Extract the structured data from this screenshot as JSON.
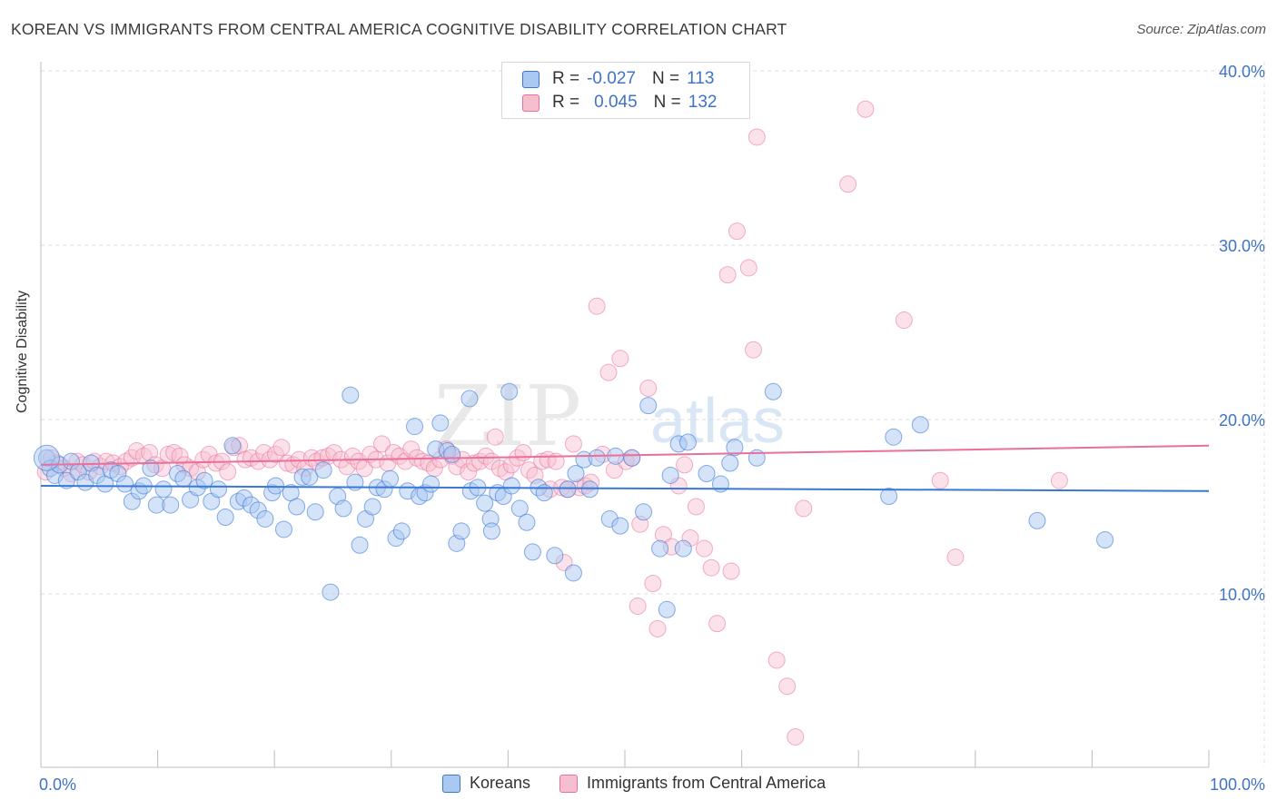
{
  "title": "KOREAN VS IMMIGRANTS FROM CENTRAL AMERICA COGNITIVE DISABILITY CORRELATION CHART",
  "source": "Source: ZipAtlas.com",
  "watermark": "ZIPatlas",
  "colors": {
    "blue": "#3a78d6",
    "blue_fill": "#a9c8f2",
    "pink": "#e8709a",
    "pink_fill": "#f6bfd0",
    "axis_text": "#3e73c8",
    "grid": "#dcdcdc"
  },
  "legend": {
    "rows": [
      {
        "r_label": "R =",
        "r_value": "-0.027",
        "n_label": "N =",
        "n_value": "113"
      },
      {
        "r_label": "R =",
        "r_value": "0.045",
        "n_label": "N =",
        "n_value": "132"
      }
    ]
  },
  "bottom_legend": {
    "series1": "Koreans",
    "series2": "Immigrants from Central America"
  },
  "chart_data": {
    "type": "scatter",
    "ylabel": "Cognitive Disability",
    "xlabel": "",
    "x_tick_labels": [
      "0.0%",
      "100.0%"
    ],
    "y_tick_labels": [
      "10.0%",
      "20.0%",
      "30.0%",
      "40.0%"
    ],
    "y_ticks": [
      10,
      20,
      30,
      40
    ],
    "xlim": [
      0,
      100
    ],
    "ylim": [
      0,
      41
    ],
    "grid": true,
    "series": [
      {
        "name": "Koreans",
        "trend": {
          "y_at_0": 16.2,
          "y_at_100": 15.9
        },
        "points": [
          [
            0.5,
            17.8
          ],
          [
            0.8,
            17.2
          ],
          [
            1.2,
            16.8
          ],
          [
            1.6,
            17.4
          ],
          [
            2.2,
            16.5
          ],
          [
            2.6,
            17.6
          ],
          [
            3.2,
            17.0
          ],
          [
            3.8,
            16.4
          ],
          [
            4.3,
            17.5
          ],
          [
            4.8,
            16.8
          ],
          [
            5.5,
            16.3
          ],
          [
            6.0,
            17.1
          ],
          [
            6.6,
            16.9
          ],
          [
            7.2,
            16.3
          ],
          [
            7.8,
            15.3
          ],
          [
            8.4,
            15.9
          ],
          [
            8.8,
            16.2
          ],
          [
            9.4,
            17.2
          ],
          [
            9.9,
            15.1
          ],
          [
            10.5,
            16.0
          ],
          [
            11.1,
            15.1
          ],
          [
            11.7,
            16.9
          ],
          [
            12.2,
            16.6
          ],
          [
            12.8,
            15.4
          ],
          [
            13.4,
            16.1
          ],
          [
            14.0,
            16.5
          ],
          [
            14.6,
            15.3
          ],
          [
            15.2,
            16.0
          ],
          [
            15.8,
            14.4
          ],
          [
            16.4,
            18.5
          ],
          [
            16.9,
            15.3
          ],
          [
            17.4,
            15.5
          ],
          [
            18.0,
            15.1
          ],
          [
            18.6,
            14.8
          ],
          [
            19.2,
            14.3
          ],
          [
            19.8,
            15.8
          ],
          [
            20.1,
            16.2
          ],
          [
            20.8,
            13.7
          ],
          [
            21.4,
            15.8
          ],
          [
            21.9,
            15.0
          ],
          [
            22.4,
            16.7
          ],
          [
            23.0,
            16.7
          ],
          [
            23.5,
            14.7
          ],
          [
            24.2,
            17.1
          ],
          [
            24.8,
            10.1
          ],
          [
            25.4,
            15.6
          ],
          [
            25.9,
            14.9
          ],
          [
            26.5,
            21.4
          ],
          [
            26.9,
            16.4
          ],
          [
            27.3,
            12.8
          ],
          [
            27.8,
            14.3
          ],
          [
            28.4,
            15.0
          ],
          [
            28.8,
            16.1
          ],
          [
            29.4,
            16.0
          ],
          [
            29.9,
            16.6
          ],
          [
            30.4,
            13.2
          ],
          [
            30.9,
            13.6
          ],
          [
            31.4,
            15.9
          ],
          [
            32.0,
            19.6
          ],
          [
            32.4,
            15.6
          ],
          [
            32.9,
            15.8
          ],
          [
            33.4,
            16.3
          ],
          [
            33.8,
            18.3
          ],
          [
            34.2,
            19.8
          ],
          [
            34.8,
            18.2
          ],
          [
            35.2,
            18.0
          ],
          [
            35.6,
            12.9
          ],
          [
            36.0,
            13.6
          ],
          [
            36.7,
            21.2
          ],
          [
            36.8,
            15.9
          ],
          [
            37.4,
            16.1
          ],
          [
            38.0,
            15.2
          ],
          [
            38.5,
            14.3
          ],
          [
            38.6,
            13.6
          ],
          [
            39.1,
            15.8
          ],
          [
            39.6,
            15.6
          ],
          [
            40.1,
            21.6
          ],
          [
            40.3,
            16.2
          ],
          [
            41.0,
            14.9
          ],
          [
            41.6,
            14.1
          ],
          [
            42.1,
            12.4
          ],
          [
            42.6,
            16.1
          ],
          [
            43.1,
            15.8
          ],
          [
            44.0,
            12.2
          ],
          [
            45.1,
            16.0
          ],
          [
            45.6,
            11.2
          ],
          [
            45.8,
            16.9
          ],
          [
            46.5,
            17.7
          ],
          [
            47.0,
            16.0
          ],
          [
            47.6,
            17.8
          ],
          [
            48.7,
            14.3
          ],
          [
            49.2,
            17.9
          ],
          [
            49.6,
            13.9
          ],
          [
            50.6,
            17.8
          ],
          [
            51.6,
            14.7
          ],
          [
            52.0,
            20.8
          ],
          [
            53.0,
            12.6
          ],
          [
            53.6,
            9.1
          ],
          [
            53.9,
            16.8
          ],
          [
            54.6,
            18.6
          ],
          [
            55.0,
            12.6
          ],
          [
            55.4,
            18.7
          ],
          [
            57.0,
            16.9
          ],
          [
            58.2,
            16.3
          ],
          [
            59.0,
            17.5
          ],
          [
            59.4,
            18.4
          ],
          [
            61.3,
            17.8
          ],
          [
            62.7,
            21.6
          ],
          [
            72.6,
            15.6
          ],
          [
            73.0,
            19.0
          ],
          [
            75.3,
            19.7
          ],
          [
            85.3,
            14.2
          ],
          [
            91.1,
            13.1
          ]
        ]
      },
      {
        "name": "Immigrants from Central America",
        "trend": {
          "y_at_0": 17.4,
          "y_at_100": 18.5
        },
        "points": [
          [
            0.4,
            17.0
          ],
          [
            0.9,
            17.8
          ],
          [
            1.4,
            17.5
          ],
          [
            2.0,
            17.2
          ],
          [
            2.6,
            16.9
          ],
          [
            3.1,
            17.6
          ],
          [
            3.6,
            17.4
          ],
          [
            4.1,
            17.0
          ],
          [
            4.6,
            17.6
          ],
          [
            5.1,
            17.3
          ],
          [
            5.6,
            17.6
          ],
          [
            6.2,
            17.5
          ],
          [
            6.8,
            17.3
          ],
          [
            7.3,
            17.6
          ],
          [
            7.8,
            17.8
          ],
          [
            8.2,
            18.2
          ],
          [
            8.8,
            17.9
          ],
          [
            9.3,
            18.1
          ],
          [
            9.8,
            17.4
          ],
          [
            10.4,
            17.2
          ],
          [
            10.9,
            18.0
          ],
          [
            11.4,
            18.1
          ],
          [
            11.9,
            17.9
          ],
          [
            12.3,
            17.4
          ],
          [
            12.8,
            17.2
          ],
          [
            13.4,
            17.0
          ],
          [
            13.9,
            17.7
          ],
          [
            14.4,
            18.0
          ],
          [
            15.0,
            17.5
          ],
          [
            15.5,
            17.6
          ],
          [
            16.0,
            17.0
          ],
          [
            16.5,
            18.4
          ],
          [
            17.0,
            18.5
          ],
          [
            17.5,
            17.7
          ],
          [
            18.0,
            17.8
          ],
          [
            18.6,
            17.6
          ],
          [
            19.1,
            18.1
          ],
          [
            19.6,
            17.7
          ],
          [
            20.1,
            18.0
          ],
          [
            20.6,
            18.4
          ],
          [
            21.1,
            17.5
          ],
          [
            21.6,
            17.4
          ],
          [
            22.1,
            17.7
          ],
          [
            22.6,
            17.2
          ],
          [
            23.2,
            17.8
          ],
          [
            23.6,
            17.6
          ],
          [
            24.1,
            17.8
          ],
          [
            24.6,
            17.9
          ],
          [
            25.1,
            18.1
          ],
          [
            25.7,
            17.7
          ],
          [
            26.2,
            17.3
          ],
          [
            26.7,
            17.9
          ],
          [
            27.2,
            17.6
          ],
          [
            27.7,
            17.2
          ],
          [
            28.2,
            18.0
          ],
          [
            28.7,
            17.7
          ],
          [
            29.2,
            18.6
          ],
          [
            29.7,
            17.5
          ],
          [
            30.2,
            18.1
          ],
          [
            30.7,
            17.9
          ],
          [
            31.2,
            17.6
          ],
          [
            31.7,
            18.3
          ],
          [
            32.2,
            17.8
          ],
          [
            32.7,
            17.6
          ],
          [
            33.2,
            17.5
          ],
          [
            33.7,
            17.2
          ],
          [
            34.2,
            17.7
          ],
          [
            34.7,
            18.3
          ],
          [
            35.2,
            17.9
          ],
          [
            35.6,
            17.3
          ],
          [
            36.1,
            17.7
          ],
          [
            36.6,
            17.0
          ],
          [
            37.1,
            17.5
          ],
          [
            37.6,
            17.6
          ],
          [
            38.1,
            17.9
          ],
          [
            38.6,
            17.6
          ],
          [
            38.9,
            19.0
          ],
          [
            39.3,
            17.2
          ],
          [
            39.8,
            17.0
          ],
          [
            40.3,
            17.4
          ],
          [
            40.8,
            17.8
          ],
          [
            41.3,
            18.1
          ],
          [
            41.8,
            17.1
          ],
          [
            42.3,
            16.8
          ],
          [
            42.9,
            17.6
          ],
          [
            43.4,
            17.7
          ],
          [
            43.6,
            16.0
          ],
          [
            44.1,
            17.6
          ],
          [
            44.6,
            16.1
          ],
          [
            45.1,
            16.0
          ],
          [
            45.6,
            18.6
          ],
          [
            46.1,
            16.1
          ],
          [
            46.6,
            16.2
          ],
          [
            47.1,
            16.4
          ],
          [
            47.6,
            26.5
          ],
          [
            48.1,
            18.0
          ],
          [
            48.6,
            22.7
          ],
          [
            49.1,
            17.1
          ],
          [
            49.6,
            23.5
          ],
          [
            50.1,
            17.6
          ],
          [
            50.6,
            17.8
          ],
          [
            51.3,
            14.0
          ],
          [
            52.0,
            21.8
          ],
          [
            52.8,
            8.0
          ],
          [
            53.3,
            13.4
          ],
          [
            54.0,
            12.7
          ],
          [
            54.6,
            16.2
          ],
          [
            55.1,
            17.4
          ],
          [
            55.6,
            13.2
          ],
          [
            56.1,
            15.0
          ],
          [
            56.8,
            12.6
          ],
          [
            57.4,
            11.5
          ],
          [
            57.9,
            8.3
          ],
          [
            58.8,
            28.3
          ],
          [
            59.1,
            11.3
          ],
          [
            59.6,
            30.8
          ],
          [
            60.6,
            28.7
          ],
          [
            61.0,
            24.0
          ],
          [
            61.3,
            36.2
          ],
          [
            63.0,
            6.2
          ],
          [
            63.9,
            4.7
          ],
          [
            64.6,
            1.8
          ],
          [
            65.3,
            14.9
          ],
          [
            69.1,
            33.5
          ],
          [
            70.6,
            37.8
          ],
          [
            73.9,
            25.7
          ],
          [
            77.0,
            16.5
          ],
          [
            78.3,
            12.1
          ],
          [
            87.2,
            16.5
          ],
          [
            51.1,
            9.3
          ],
          [
            52.4,
            10.6
          ],
          [
            44.8,
            11.8
          ]
        ]
      }
    ]
  }
}
